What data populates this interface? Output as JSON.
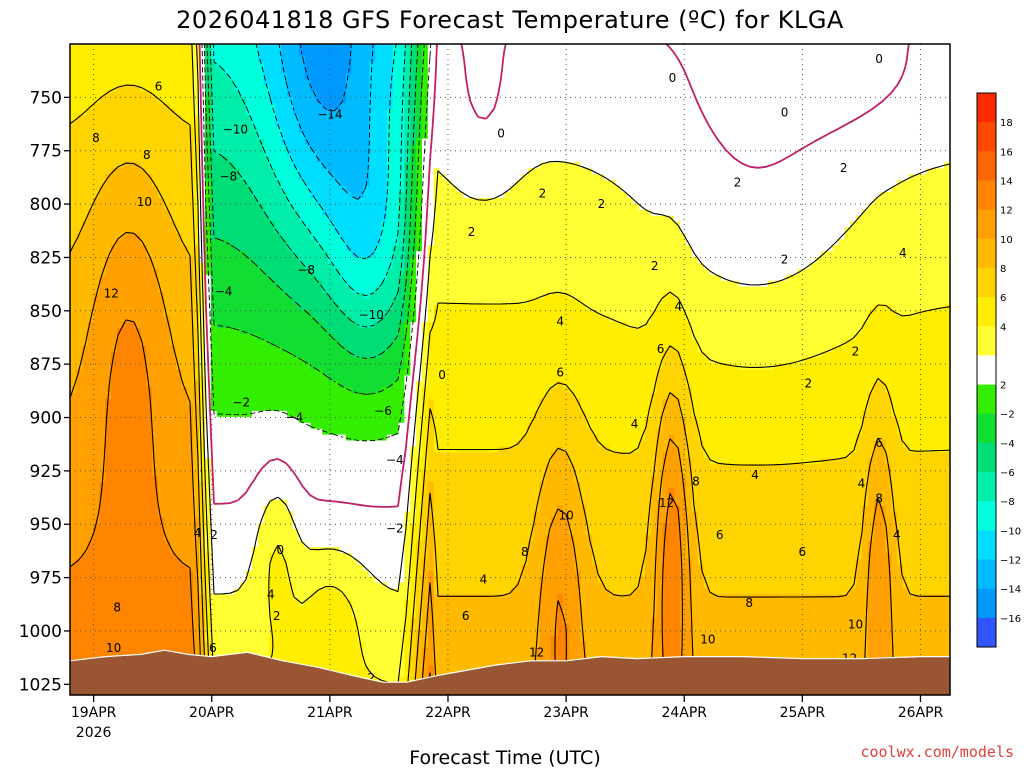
{
  "chart_data": {
    "type": "heatmap",
    "title": "2026041818 GFS Forecast Temperature (ºC) for KLGA",
    "xlabel": "Forecast Time (UTC)",
    "ylabel": "",
    "credit": "coolwx.com/models",
    "x_ticks": [
      "19APR",
      "20APR",
      "21APR",
      "22APR",
      "23APR",
      "24APR",
      "25APR",
      "26APR"
    ],
    "x_tick_sub": "2026",
    "x_range_days": [
      -0.2,
      7.25
    ],
    "y_ticks": [
      "750",
      "775",
      "800",
      "825",
      "850",
      "875",
      "900",
      "925",
      "950",
      "975",
      "1000",
      "1025"
    ],
    "y_range_hpa": [
      725,
      1030
    ],
    "colorbar": {
      "tick_labels": [
        "18",
        "16",
        "14",
        "12",
        "10",
        "8",
        "6",
        "4",
        "2",
        "−2",
        "−4",
        "−6",
        "−8",
        "−10",
        "−12",
        "−14",
        "−16"
      ],
      "colors": [
        "#ff2a00",
        "#ff4a00",
        "#ff6a00",
        "#ff8a00",
        "#ffa600",
        "#ffbf00",
        "#ffdb00",
        "#fff400",
        "#ffffff",
        "#30e000",
        "#1ed01e",
        "#10d070",
        "#00dcb0",
        "#00f0d8",
        "#00d8ff",
        "#0cb0ff",
        "#2080ff",
        "#3060ff"
      ],
      "band_colors": [
        "#ff2a00",
        "#ff4800",
        "#ff6600",
        "#ff8400",
        "#ffa000",
        "#ffba00",
        "#ffd400",
        "#ffee00",
        "#ffff33",
        "#ffffff",
        "#33ee00",
        "#11dd33",
        "#00dd77",
        "#00eeaa",
        "#00ffdd",
        "#00ddff",
        "#00bbff",
        "#0099ff",
        "#0077ff",
        "#3355ff"
      ]
    },
    "contour_labels": [
      {
        "text": "6",
        "day": 0.55,
        "hpa": 745
      },
      {
        "text": "8",
        "day": 0.02,
        "hpa": 769
      },
      {
        "text": "8",
        "day": 0.45,
        "hpa": 777
      },
      {
        "text": "10",
        "day": 0.43,
        "hpa": 799
      },
      {
        "text": "12",
        "day": 0.15,
        "hpa": 842
      },
      {
        "text": "4",
        "day": 0.88,
        "hpa": 954
      },
      {
        "text": "2",
        "day": 1.02,
        "hpa": 955
      },
      {
        "text": "8",
        "day": 0.2,
        "hpa": 989
      },
      {
        "text": "10",
        "day": 0.17,
        "hpa": 1008
      },
      {
        "text": "6",
        "day": 1.01,
        "hpa": 1008
      },
      {
        "text": "−10",
        "day": 1.2,
        "hpa": 765
      },
      {
        "text": "−8",
        "day": 1.14,
        "hpa": 787
      },
      {
        "text": "−14",
        "day": 2.0,
        "hpa": 758
      },
      {
        "text": "−8",
        "day": 1.8,
        "hpa": 831
      },
      {
        "text": "−4",
        "day": 1.1,
        "hpa": 841
      },
      {
        "text": "−10",
        "day": 2.35,
        "hpa": 852
      },
      {
        "text": "−2",
        "day": 1.25,
        "hpa": 893
      },
      {
        "text": "−4",
        "day": 1.7,
        "hpa": 900
      },
      {
        "text": "−6",
        "day": 2.45,
        "hpa": 897
      },
      {
        "text": "−4",
        "day": 2.55,
        "hpa": 920
      },
      {
        "text": "−2",
        "day": 2.55,
        "hpa": 952
      },
      {
        "text": "0",
        "day": 1.58,
        "hpa": 962
      },
      {
        "text": "4",
        "day": 1.5,
        "hpa": 983
      },
      {
        "text": "2",
        "day": 1.55,
        "hpa": 993
      },
      {
        "text": "2",
        "day": 2.35,
        "hpa": 1022
      },
      {
        "text": "0",
        "day": 2.95,
        "hpa": 880
      },
      {
        "text": "0",
        "day": 3.45,
        "hpa": 767
      },
      {
        "text": "2",
        "day": 3.2,
        "hpa": 813
      },
      {
        "text": "2",
        "day": 3.8,
        "hpa": 795
      },
      {
        "text": "2",
        "day": 4.3,
        "hpa": 800
      },
      {
        "text": "2",
        "day": 4.75,
        "hpa": 829
      },
      {
        "text": "0",
        "day": 4.9,
        "hpa": 741
      },
      {
        "text": "0",
        "day": 5.85,
        "hpa": 757
      },
      {
        "text": "0",
        "day": 6.65,
        "hpa": 732
      },
      {
        "text": "2",
        "day": 5.45,
        "hpa": 790
      },
      {
        "text": "2",
        "day": 5.85,
        "hpa": 826
      },
      {
        "text": "2",
        "day": 6.35,
        "hpa": 783
      },
      {
        "text": "2",
        "day": 6.05,
        "hpa": 884
      },
      {
        "text": "2",
        "day": 6.45,
        "hpa": 869
      },
      {
        "text": "4",
        "day": 6.85,
        "hpa": 823
      },
      {
        "text": "4",
        "day": 4.95,
        "hpa": 848
      },
      {
        "text": "4",
        "day": 3.95,
        "hpa": 855
      },
      {
        "text": "6",
        "day": 3.95,
        "hpa": 879
      },
      {
        "text": "6",
        "day": 4.8,
        "hpa": 868
      },
      {
        "text": "4",
        "day": 4.58,
        "hpa": 903
      },
      {
        "text": "4",
        "day": 5.6,
        "hpa": 927
      },
      {
        "text": "4",
        "day": 6.5,
        "hpa": 931
      },
      {
        "text": "6",
        "day": 6.65,
        "hpa": 912
      },
      {
        "text": "8",
        "day": 6.65,
        "hpa": 938
      },
      {
        "text": "4",
        "day": 6.8,
        "hpa": 955
      },
      {
        "text": "8",
        "day": 5.1,
        "hpa": 930
      },
      {
        "text": "6",
        "day": 5.3,
        "hpa": 955
      },
      {
        "text": "6",
        "day": 6.0,
        "hpa": 963
      },
      {
        "text": "8",
        "day": 5.55,
        "hpa": 987
      },
      {
        "text": "12",
        "day": 4.85,
        "hpa": 940
      },
      {
        "text": "10",
        "day": 4.0,
        "hpa": 946
      },
      {
        "text": "8",
        "day": 3.65,
        "hpa": 963
      },
      {
        "text": "4",
        "day": 3.3,
        "hpa": 976
      },
      {
        "text": "6",
        "day": 3.15,
        "hpa": 993
      },
      {
        "text": "12",
        "day": 3.75,
        "hpa": 1010
      },
      {
        "text": "10",
        "day": 5.2,
        "hpa": 1004
      },
      {
        "text": "10",
        "day": 6.45,
        "hpa": 997
      },
      {
        "text": "12",
        "day": 6.4,
        "hpa": 1013
      }
    ],
    "surface_pressure_hpa": [
      [
        -0.2,
        1014
      ],
      [
        0.1,
        1012
      ],
      [
        0.4,
        1011
      ],
      [
        0.6,
        1009
      ],
      [
        0.8,
        1011
      ],
      [
        1.0,
        1012
      ],
      [
        1.3,
        1010
      ],
      [
        1.6,
        1014
      ],
      [
        1.9,
        1017
      ],
      [
        2.2,
        1021
      ],
      [
        2.45,
        1024
      ],
      [
        2.65,
        1024
      ],
      [
        2.9,
        1021
      ],
      [
        3.1,
        1019
      ],
      [
        3.4,
        1016
      ],
      [
        3.7,
        1014
      ],
      [
        4.0,
        1014
      ],
      [
        4.3,
        1012
      ],
      [
        4.6,
        1013
      ],
      [
        5.0,
        1012
      ],
      [
        5.5,
        1012
      ],
      [
        6.0,
        1013
      ],
      [
        6.5,
        1013
      ],
      [
        7.0,
        1012
      ],
      [
        7.25,
        1012
      ]
    ]
  }
}
